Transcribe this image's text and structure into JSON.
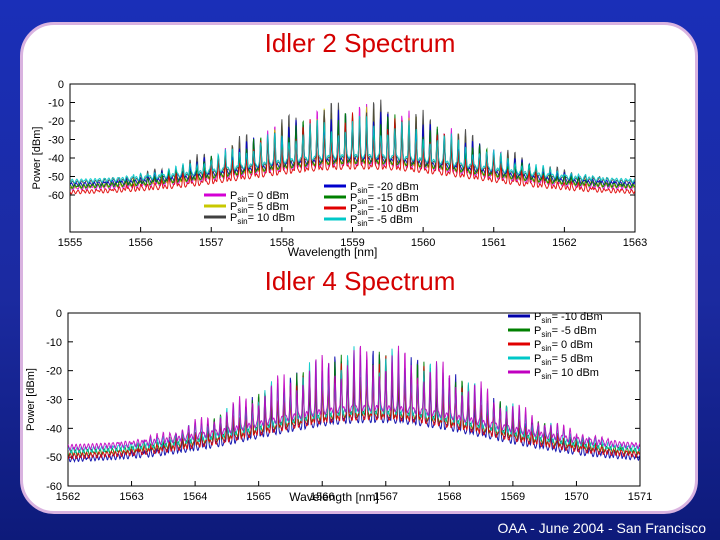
{
  "footer": "OAA - June 2004 - San Francisco",
  "chart_data": [
    {
      "type": "line",
      "title": "Idler 2 Spectrum",
      "xlabel": "Wavelength [nm]",
      "ylabel": "Power [dBm]",
      "xlim": [
        1555,
        1563
      ],
      "ylim": [
        -80,
        0
      ],
      "xticks": [
        "1555",
        "1556",
        "1557",
        "1558",
        "1559",
        "1560",
        "1561",
        "1562",
        "1563"
      ],
      "yticks": [
        "0",
        "-10",
        "-20",
        "-30",
        "-40",
        "-50",
        "-60"
      ],
      "spectrum": {
        "center": 1559.1,
        "start": 1555.0,
        "spacing": 0.1,
        "envelope_sigma": 1.6
      },
      "series": [
        {
          "name": "P_sin = 0 dBm",
          "color": "#d400d4",
          "peak": -10,
          "floor": -58
        },
        {
          "name": "P_sin = 5 dBm",
          "color": "#c8c800",
          "peak": -11,
          "floor": -57
        },
        {
          "name": "P_sin = 10 dBm",
          "color": "#404040",
          "peak": -7,
          "floor": -55
        },
        {
          "name": "P_sin = -20 dBm",
          "color": "#0000cc",
          "peak": -13,
          "floor": -56
        },
        {
          "name": "P_sin = -15 dBm",
          "color": "#008000",
          "peak": -14,
          "floor": -57
        },
        {
          "name": "P_sin = -10 dBm",
          "color": "#e00000",
          "peak": -15,
          "floor": -60
        },
        {
          "name": "P_sin = -5 dBm",
          "color": "#00c8c8",
          "peak": -16,
          "floor": -54
        }
      ],
      "legend": [
        {
          "prefix": "P",
          "sub": "sin",
          "rest": "= 0 dBm",
          "color": "#d400d4"
        },
        {
          "prefix": "P",
          "sub": "sin",
          "rest": "= 5 dBm",
          "color": "#c8c800"
        },
        {
          "prefix": "P",
          "sub": "sin",
          "rest": "= 10 dBm",
          "color": "#404040"
        },
        {
          "prefix": "P",
          "sub": "sin",
          "rest": "= -20 dBm",
          "color": "#0000cc"
        },
        {
          "prefix": "P",
          "sub": "sin",
          "rest": "= -15 dBm",
          "color": "#008000"
        },
        {
          "prefix": "P",
          "sub": "sin",
          "rest": "= -10 dBm",
          "color": "#e00000"
        },
        {
          "prefix": "P",
          "sub": "sin",
          "rest": "= -5 dBm",
          "color": "#00c8c8"
        }
      ]
    },
    {
      "type": "line",
      "title": "Idler 4 Spectrum",
      "xlabel": "Wavelength [nm]",
      "ylabel": "Power [dBm]",
      "xlim": [
        1562,
        1571
      ],
      "ylim": [
        -60,
        0
      ],
      "xticks": [
        "1562",
        "1563",
        "1564",
        "1565",
        "1566",
        "1567",
        "1568",
        "1569",
        "1570",
        "1571"
      ],
      "yticks": [
        "0",
        "-10",
        "-20",
        "-30",
        "-40",
        "-50",
        "-60"
      ],
      "spectrum": {
        "center": 1566.8,
        "start": 1562.3,
        "spacing": 0.1,
        "envelope_sigma": 1.8
      },
      "series": [
        {
          "name": "P_sin = -10 dBm",
          "color": "#0000aa",
          "peak": -12,
          "floor": -52
        },
        {
          "name": "P_sin = -5 dBm",
          "color": "#008000",
          "peak": -13,
          "floor": -50
        },
        {
          "name": "P_sin = 0 dBm",
          "color": "#e00000",
          "peak": -14,
          "floor": -51
        },
        {
          "name": "P_sin = 5 dBm",
          "color": "#00c8c8",
          "peak": -11,
          "floor": -49
        },
        {
          "name": "P_sin = 10 dBm",
          "color": "#c000c0",
          "peak": -10,
          "floor": -48
        }
      ],
      "legend": [
        {
          "prefix": "P",
          "sub": "sin",
          "rest": "= -10 dBm",
          "color": "#0000aa"
        },
        {
          "prefix": "P",
          "sub": "sin",
          "rest": "= -5 dBm",
          "color": "#008000"
        },
        {
          "prefix": "P",
          "sub": "sin",
          "rest": "= 0 dBm",
          "color": "#e00000"
        },
        {
          "prefix": "P",
          "sub": "sin",
          "rest": "= 5 dBm",
          "color": "#00c8c8"
        },
        {
          "prefix": "P",
          "sub": "sin",
          "rest": "= 10 dBm",
          "color": "#c000c0"
        }
      ]
    }
  ]
}
